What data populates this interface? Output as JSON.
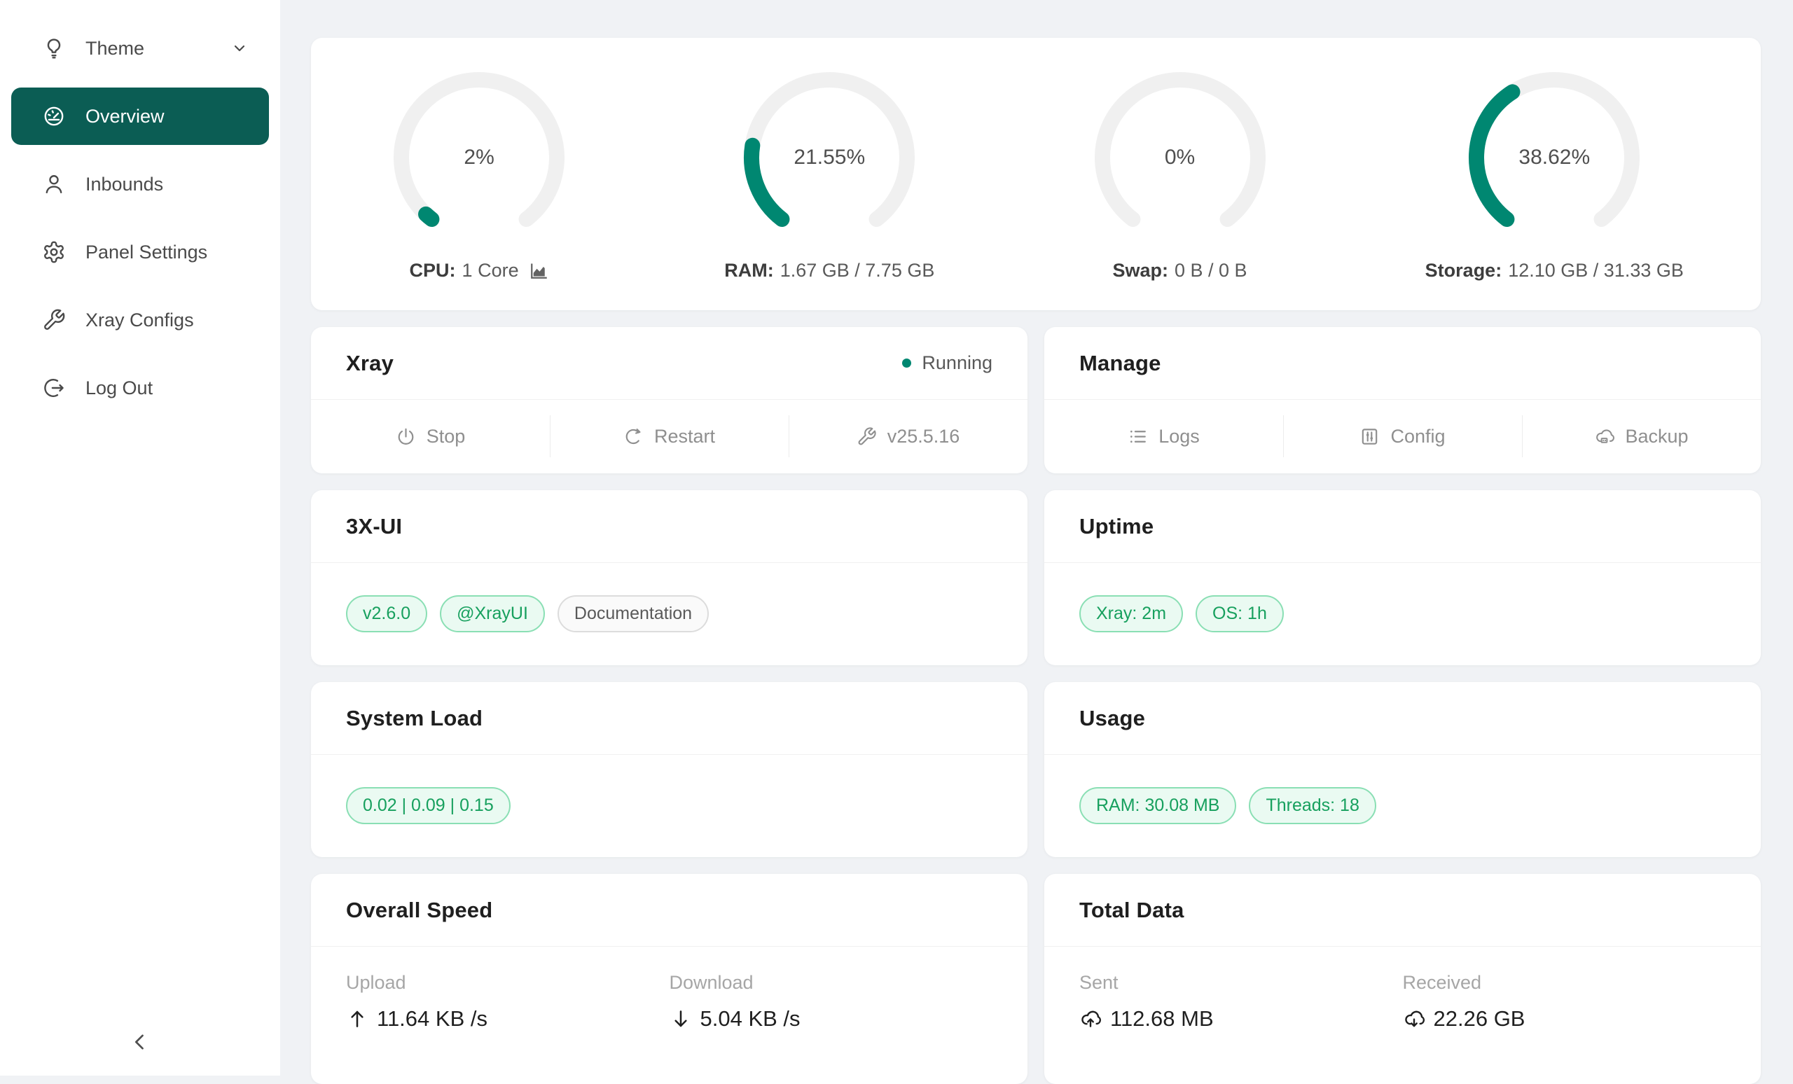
{
  "colors": {
    "primary": "#0b5d54",
    "accent": "#008771",
    "gauge_track": "#f0f0f0",
    "badge_green_text": "#17a05e",
    "badge_green_border": "#8adfb4",
    "badge_green_bg": "#eafaf2",
    "page_bg": "#f0f2f5"
  },
  "sidebar": {
    "items": [
      {
        "label": "Theme",
        "icon": "lightbulb-icon",
        "has_caret": true
      },
      {
        "label": "Overview",
        "icon": "dashboard-icon",
        "active": true
      },
      {
        "label": "Inbounds",
        "icon": "user-icon"
      },
      {
        "label": "Panel Settings",
        "icon": "gear-icon"
      },
      {
        "label": "Xray Configs",
        "icon": "wrench-icon"
      },
      {
        "label": "Log Out",
        "icon": "logout-icon"
      }
    ]
  },
  "gauges": [
    {
      "percent": 2,
      "percent_label": "2%",
      "label": "CPU:",
      "value": "1 Core",
      "has_chart_icon": true
    },
    {
      "percent": 21.55,
      "percent_label": "21.55%",
      "label": "RAM:",
      "value": "1.67 GB / 7.75 GB"
    },
    {
      "percent": 0,
      "percent_label": "0%",
      "label": "Swap:",
      "value": "0 B / 0 B"
    },
    {
      "percent": 38.62,
      "percent_label": "38.62%",
      "label": "Storage:",
      "value": "12.10 GB / 31.33 GB"
    }
  ],
  "cards": {
    "xray": {
      "title": "Xray",
      "status": "Running",
      "actions": [
        {
          "label": "Stop",
          "icon": "power-icon"
        },
        {
          "label": "Restart",
          "icon": "reload-icon"
        },
        {
          "label": "v25.5.16",
          "icon": "wrench-icon"
        }
      ]
    },
    "manage": {
      "title": "Manage",
      "actions": [
        {
          "label": "Logs",
          "icon": "list-icon"
        },
        {
          "label": "Config",
          "icon": "sliders-icon"
        },
        {
          "label": "Backup",
          "icon": "cloud-server-icon"
        }
      ]
    },
    "xui": {
      "title": "3X-UI",
      "badges": [
        {
          "label": "v2.6.0",
          "style": "green"
        },
        {
          "label": "@XrayUI",
          "style": "green"
        },
        {
          "label": "Documentation",
          "style": "gray"
        }
      ]
    },
    "uptime": {
      "title": "Uptime",
      "badges": [
        {
          "label": "Xray: 2m",
          "style": "green"
        },
        {
          "label": "OS: 1h",
          "style": "green"
        }
      ]
    },
    "system_load": {
      "title": "System Load",
      "badges": [
        {
          "label": "0.02 | 0.09 | 0.15",
          "style": "green"
        }
      ]
    },
    "usage": {
      "title": "Usage",
      "badges": [
        {
          "label": "RAM: 30.08 MB",
          "style": "green"
        },
        {
          "label": "Threads: 18",
          "style": "green"
        }
      ]
    },
    "overall_speed": {
      "title": "Overall Speed",
      "stats": [
        {
          "label": "Upload",
          "value": "11.64 KB /s",
          "icon": "arrow-up-icon"
        },
        {
          "label": "Download",
          "value": "5.04 KB /s",
          "icon": "arrow-down-icon"
        }
      ]
    },
    "total_data": {
      "title": "Total Data",
      "stats": [
        {
          "label": "Sent",
          "value": "112.68 MB",
          "icon": "cloud-upload-icon"
        },
        {
          "label": "Received",
          "value": "22.26 GB",
          "icon": "cloud-download-icon"
        }
      ]
    }
  }
}
